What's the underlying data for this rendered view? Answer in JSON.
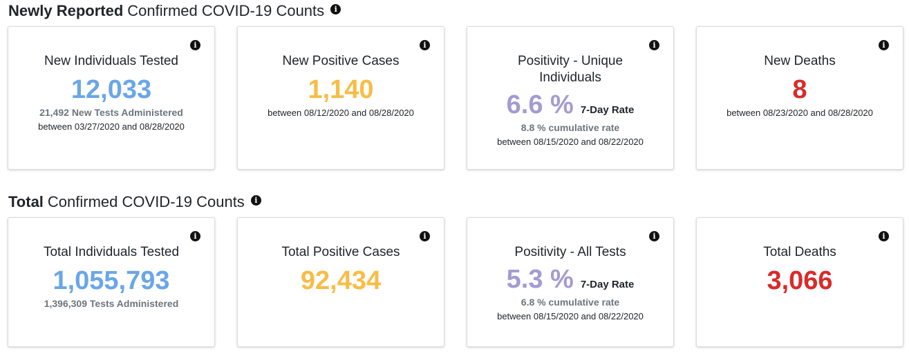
{
  "sections": {
    "new": {
      "title_strong": "Newly Reported",
      "title_rest": "Confirmed COVID-19 Counts",
      "cards": {
        "tested": {
          "title": "New Individuals Tested",
          "value": "12,033",
          "sub": "21,492 New Tests Administered",
          "range": "between 03/27/2020 and 08/28/2020"
        },
        "positive": {
          "title": "New Positive Cases",
          "value": "1,140",
          "range": "between 08/12/2020 and 08/28/2020"
        },
        "positivity": {
          "title": "Positivity - Unique Individuals",
          "value": "6.6 %",
          "rate_label": "7-Day Rate",
          "sub": "8.8 % cumulative rate",
          "range": "between 08/15/2020 and 08/22/2020"
        },
        "deaths": {
          "title": "New Deaths",
          "value": "8",
          "range": "between 08/23/2020 and 08/28/2020"
        }
      }
    },
    "total": {
      "title_strong": "Total",
      "title_rest": "Confirmed COVID-19 Counts",
      "cards": {
        "tested": {
          "title": "Total Individuals Tested",
          "value": "1,055,793",
          "sub": "1,396,309 Tests Administered"
        },
        "positive": {
          "title": "Total Positive Cases",
          "value": "92,434"
        },
        "positivity": {
          "title": "Positivity - All Tests",
          "value": "5.3 %",
          "rate_label": "7-Day Rate",
          "sub": "6.8 % cumulative rate",
          "range": "between 08/15/2020 and 08/22/2020"
        },
        "deaths": {
          "title": "Total Deaths",
          "value": "3,066"
        }
      }
    }
  },
  "info_glyph": "i",
  "colors": {
    "tested": "#6aa6e8",
    "positive": "#f8bc46",
    "positivity": "#a39bd2",
    "deaths": "#d92b2b"
  }
}
